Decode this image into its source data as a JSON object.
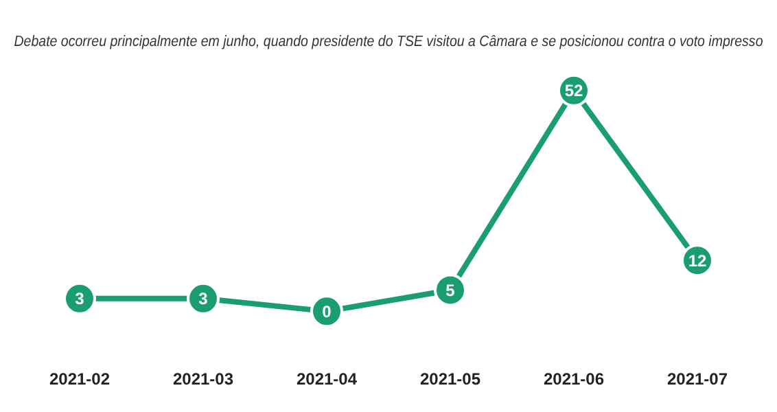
{
  "chart_data": {
    "type": "line",
    "subtitle": "Debate ocorreu principalmente em junho, quando presidente do TSE visitou a Câmara e se posicionou contra o voto impresso",
    "categories": [
      "2021-02",
      "2021-03",
      "2021-04",
      "2021-05",
      "2021-06",
      "2021-07"
    ],
    "series": [
      {
        "color": "#1a9e70",
        "values": [
          3,
          3,
          0,
          5,
          52,
          12
        ]
      }
    ],
    "data_labels": true,
    "marker": "circle"
  }
}
